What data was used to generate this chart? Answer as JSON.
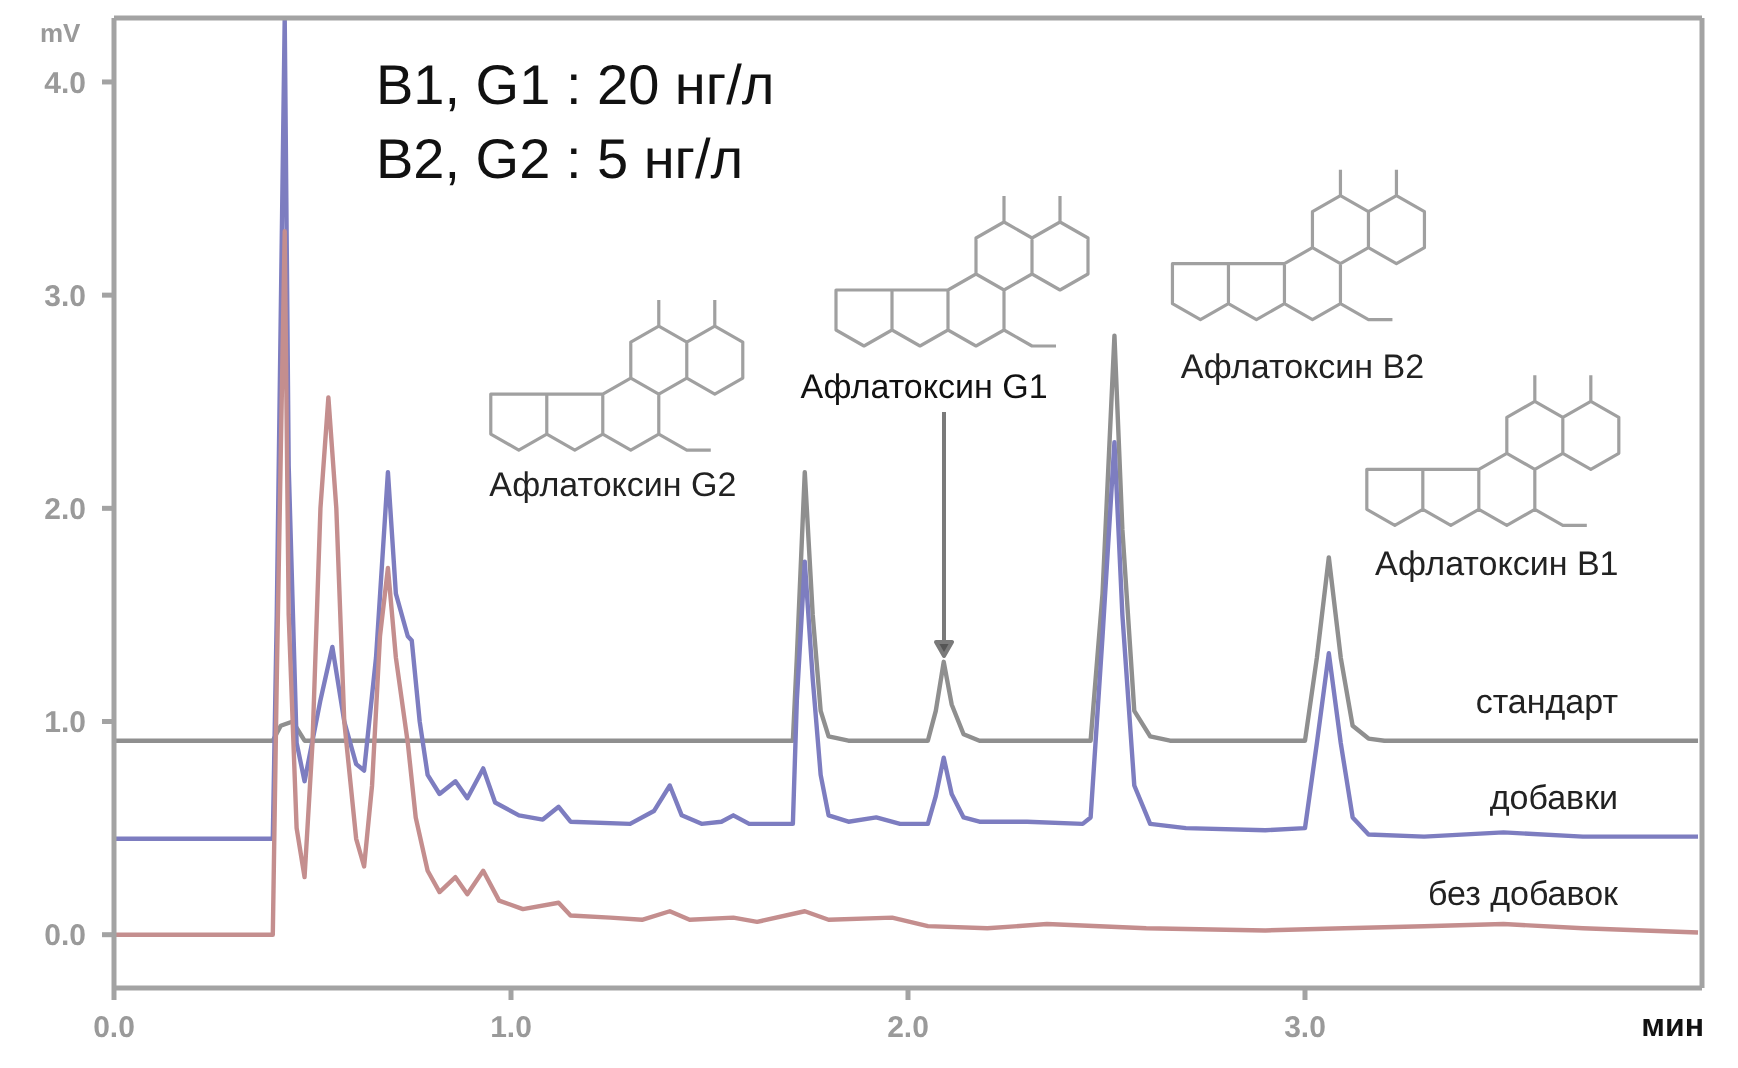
{
  "chart_data": {
    "type": "line",
    "xlabel": "мин",
    "ylabel": "mV",
    "xlim": [
      0,
      4.0
    ],
    "xticks": [
      {
        "value": 0,
        "label": "0.0"
      },
      {
        "value": 1,
        "label": "1.0"
      },
      {
        "value": 2,
        "label": "2.0"
      },
      {
        "value": 3,
        "label": "3.0"
      }
    ],
    "ylim": [
      -0.25,
      4.3
    ],
    "yticks": [
      {
        "value": 0,
        "label": "0.0"
      },
      {
        "value": 1,
        "label": "1.0"
      },
      {
        "value": 2,
        "label": "2.0"
      },
      {
        "value": 3,
        "label": "3.0"
      },
      {
        "value": 4,
        "label": "4.0"
      }
    ],
    "marker": "none",
    "line_style": "solid",
    "series": [
      {
        "name": "стандарт",
        "color": "#8f8f8f",
        "x": [
          0,
          0.4,
          0.42,
          0.45,
          0.48,
          1.71,
          1.72,
          1.74,
          1.76,
          1.78,
          1.8,
          1.85,
          2.05,
          2.07,
          2.09,
          2.11,
          2.14,
          2.18,
          2.46,
          2.49,
          2.52,
          2.54,
          2.57,
          2.61,
          2.66,
          3.0,
          3.03,
          3.06,
          3.09,
          3.12,
          3.16,
          3.2,
          3.99
        ],
        "values": [
          0.91,
          0.91,
          0.98,
          1.0,
          0.91,
          0.91,
          1.3,
          2.17,
          1.5,
          1.05,
          0.93,
          0.91,
          0.91,
          1.05,
          1.28,
          1.08,
          0.94,
          0.91,
          0.91,
          1.6,
          2.81,
          1.9,
          1.05,
          0.93,
          0.91,
          0.91,
          1.3,
          1.77,
          1.3,
          0.98,
          0.92,
          0.91,
          0.91
        ]
      },
      {
        "name": "добавки",
        "color": "#7d7dc0",
        "x": [
          0,
          0.4,
          0.41,
          0.43,
          0.44,
          0.46,
          0.48,
          0.52,
          0.55,
          0.58,
          0.61,
          0.63,
          0.66,
          0.69,
          0.71,
          0.74,
          0.75,
          0.77,
          0.79,
          0.82,
          0.86,
          0.89,
          0.93,
          0.96,
          1.02,
          1.08,
          1.12,
          1.15,
          1.3,
          1.36,
          1.4,
          1.43,
          1.48,
          1.53,
          1.56,
          1.6,
          1.71,
          1.72,
          1.74,
          1.76,
          1.78,
          1.8,
          1.85,
          1.92,
          1.98,
          2.05,
          2.07,
          2.09,
          2.11,
          2.14,
          2.18,
          2.3,
          2.44,
          2.46,
          2.49,
          2.52,
          2.54,
          2.57,
          2.61,
          2.7,
          2.9,
          3.0,
          3.03,
          3.06,
          3.09,
          3.12,
          3.16,
          3.3,
          3.5,
          3.7,
          3.99
        ],
        "values": [
          0.45,
          0.45,
          1.5,
          4.3,
          2.2,
          0.9,
          0.72,
          1.1,
          1.35,
          1.0,
          0.8,
          0.77,
          1.3,
          2.17,
          1.6,
          1.4,
          1.38,
          1.0,
          0.75,
          0.66,
          0.72,
          0.64,
          0.78,
          0.62,
          0.56,
          0.54,
          0.6,
          0.53,
          0.52,
          0.58,
          0.7,
          0.56,
          0.52,
          0.53,
          0.56,
          0.52,
          0.52,
          1.1,
          1.75,
          1.2,
          0.75,
          0.56,
          0.53,
          0.55,
          0.52,
          0.52,
          0.65,
          0.83,
          0.66,
          0.55,
          0.53,
          0.53,
          0.52,
          0.55,
          1.4,
          2.31,
          1.5,
          0.7,
          0.52,
          0.5,
          0.49,
          0.5,
          0.9,
          1.32,
          0.9,
          0.55,
          0.47,
          0.46,
          0.48,
          0.46,
          0.46
        ]
      },
      {
        "name": "без добавок",
        "color": "#c48e8e",
        "x": [
          0,
          0.4,
          0.41,
          0.43,
          0.44,
          0.46,
          0.48,
          0.5,
          0.52,
          0.54,
          0.56,
          0.58,
          0.61,
          0.63,
          0.65,
          0.67,
          0.69,
          0.71,
          0.74,
          0.76,
          0.79,
          0.82,
          0.86,
          0.89,
          0.93,
          0.97,
          1.03,
          1.12,
          1.15,
          1.25,
          1.33,
          1.4,
          1.45,
          1.56,
          1.62,
          1.74,
          1.8,
          1.96,
          2.05,
          2.2,
          2.35,
          2.6,
          2.9,
          3.1,
          3.3,
          3.5,
          3.7,
          3.99
        ],
        "values": [
          0,
          0,
          1.2,
          3.3,
          1.5,
          0.5,
          0.27,
          0.9,
          2.0,
          2.52,
          2.0,
          1.0,
          0.45,
          0.32,
          0.7,
          1.4,
          1.72,
          1.3,
          0.9,
          0.55,
          0.3,
          0.2,
          0.27,
          0.19,
          0.3,
          0.16,
          0.12,
          0.15,
          0.09,
          0.08,
          0.07,
          0.11,
          0.07,
          0.08,
          0.06,
          0.11,
          0.07,
          0.08,
          0.04,
          0.03,
          0.05,
          0.03,
          0.02,
          0.03,
          0.04,
          0.05,
          0.03,
          0.01
        ]
      }
    ],
    "annotations": [
      "B1, G1 : 20 нг/л",
      "B2, G2 : 5 нг/л",
      {
        "text": "Афлатоксин G2",
        "x": 1.74,
        "y": 2.17
      },
      "Афлатоксин G1",
      {
        "text": "Афлатоксин B2",
        "x": 2.52,
        "y": 2.81
      },
      {
        "text": "Афлатоксин B1",
        "x": 3.06,
        "y": 1.77
      }
    ]
  }
}
